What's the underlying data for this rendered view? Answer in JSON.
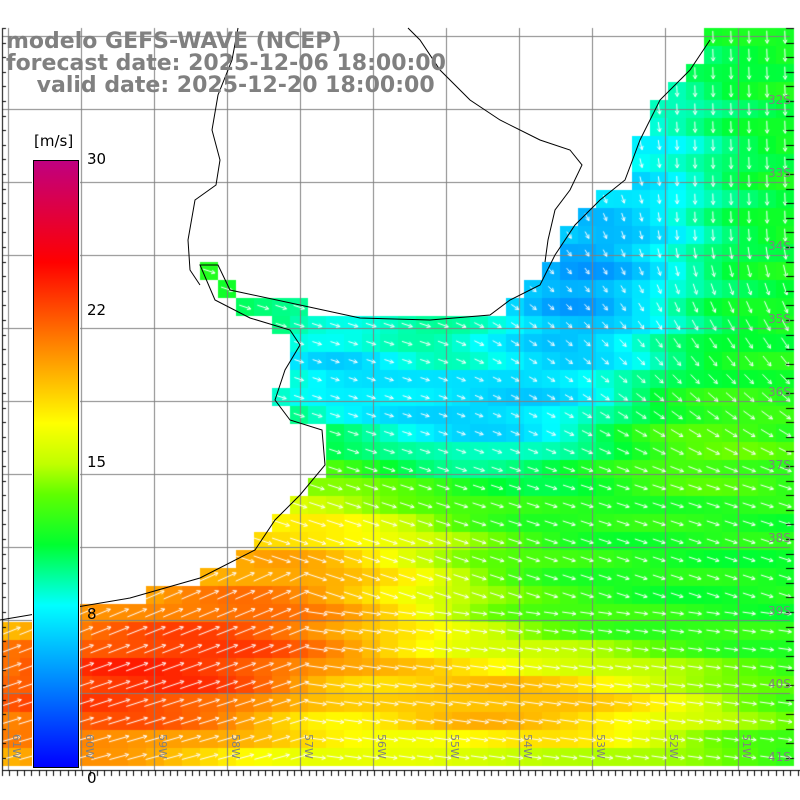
{
  "header": {
    "line1": "modelo GEFS-WAVE (NCEP)",
    "line2": "forecast date: 2025-12-06 18:00:00",
    "line3": "    valid date: 2025-12-20 18:00:00"
  },
  "colorbar": {
    "unit": "[m/s]",
    "ticks": [
      "30",
      "22",
      "15",
      "8",
      "0"
    ],
    "range": [
      0,
      30
    ],
    "stops": [
      {
        "v": 0,
        "c": "#0000ff"
      },
      {
        "v": 4,
        "c": "#0080ff"
      },
      {
        "v": 8,
        "c": "#00ffff"
      },
      {
        "v": 11,
        "c": "#00ff30"
      },
      {
        "v": 13.5,
        "c": "#60ff00"
      },
      {
        "v": 15,
        "c": "#c0ff00"
      },
      {
        "v": 17,
        "c": "#ffff00"
      },
      {
        "v": 19.5,
        "c": "#ffb000"
      },
      {
        "v": 22,
        "c": "#ff6000"
      },
      {
        "v": 25,
        "c": "#ff0000"
      },
      {
        "v": 30,
        "c": "#c00080"
      }
    ]
  },
  "axes": {
    "lon_labels": [
      "61W",
      "60W",
      "59W",
      "58W",
      "57W",
      "56W",
      "55W",
      "54W",
      "53W",
      "52W",
      "51W"
    ],
    "lat_labels": [
      "32S",
      "33S",
      "34S",
      "35S",
      "36S",
      "37S",
      "38S",
      "39S",
      "40S",
      "41S"
    ]
  }
}
